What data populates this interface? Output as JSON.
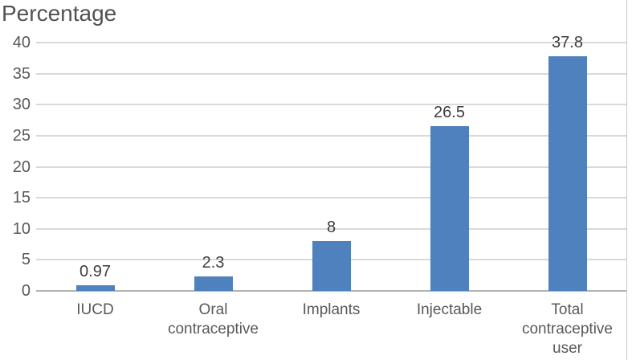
{
  "figure": {
    "right_border_color": "#c9c9c9"
  },
  "chart_data": {
    "type": "bar",
    "title": "Percentage",
    "categories": [
      "IUCD",
      "Oral contraceptive",
      "Implants",
      "Injectable",
      "Total contraceptive user"
    ],
    "values": [
      0.97,
      2.3,
      8,
      26.5,
      37.8
    ],
    "value_labels": [
      "0.97",
      "2.3",
      "8",
      "26.5",
      "37.8"
    ],
    "y_ticks": [
      0,
      5,
      10,
      15,
      20,
      25,
      30,
      35,
      40
    ],
    "ylim": [
      0,
      40
    ],
    "xlabel": "",
    "ylabel": "",
    "legend": "none",
    "grid": true,
    "colors": {
      "bar": "#4e81bd",
      "gridline": "#d9d9d9",
      "axis_line": "#b3b3b3",
      "title_text": "#525252",
      "tick_text": "#595959",
      "category_text": "#595959",
      "value_label_text": "#3d3d3d"
    }
  }
}
